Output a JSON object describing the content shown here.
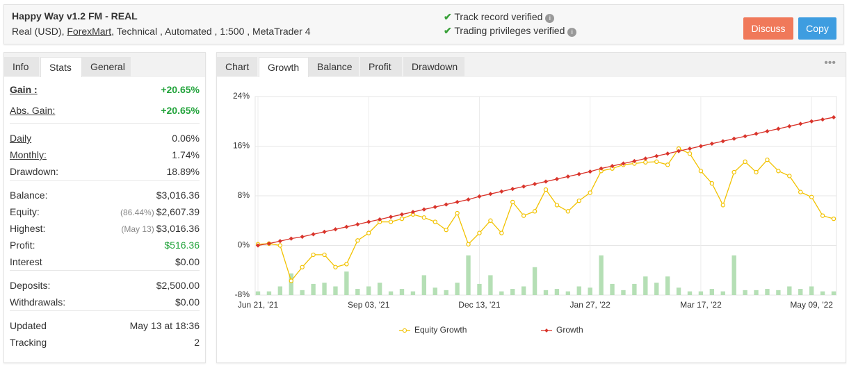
{
  "header": {
    "title": "Happy Way v1.2 FM - REAL",
    "subtitle": [
      "Real (USD), ",
      "ForexMart",
      ", Technical , Automated , 1:500 , MetaTrader 4"
    ],
    "verified": [
      "Track record verified",
      "Trading privileges verified"
    ],
    "buttons": [
      "Discuss",
      "Copy"
    ]
  },
  "left_tabs": [
    "Info",
    "Stats",
    "General"
  ],
  "stats": [
    [
      {
        "label": "Gain :",
        "value": "+20.65%"
      },
      {
        "label": "Abs. Gain:",
        "value": "+20.65%"
      }
    ],
    [
      {
        "label": "Daily",
        "value": "0.06%"
      },
      {
        "label": "Monthly:",
        "value": "1.74%"
      },
      {
        "label": "Drawdown:",
        "value": "18.89%"
      }
    ],
    [
      {
        "label": "Balance:",
        "value": "$3,016.36"
      },
      {
        "label": "Equity:",
        "note": "(86.44%)",
        "value": "$2,607.39"
      },
      {
        "label": "Highest:",
        "note": "(May 13)",
        "value": "$3,016.36"
      },
      {
        "label": "Profit:",
        "value": "$516.36"
      },
      {
        "label": "Interest",
        "value": "$0.00"
      }
    ],
    [
      {
        "label": "Deposits:",
        "value": "$2,500.00"
      },
      {
        "label": "Withdrawals:",
        "value": "$0.00"
      }
    ],
    [
      {
        "label": "Updated",
        "value": "May 13 at 18:36"
      },
      {
        "label": "Tracking",
        "value": "2"
      }
    ]
  ],
  "chart_tabs": [
    "Chart",
    "Growth",
    "Balance",
    "Profit",
    "Drawdown"
  ],
  "chart_data": {
    "type": "line",
    "categories": [
      "Jun 21, '21",
      null,
      null,
      null,
      null,
      null,
      null,
      null,
      null,
      null,
      "Sep 03, '21",
      null,
      null,
      null,
      null,
      null,
      null,
      null,
      null,
      null,
      "Dec 13, '21",
      null,
      null,
      null,
      null,
      null,
      null,
      null,
      null,
      null,
      "Jan 27, '22",
      null,
      null,
      null,
      null,
      null,
      null,
      null,
      null,
      null,
      "Mar 17, '22",
      null,
      null,
      null,
      null,
      null,
      null,
      null,
      null,
      null,
      "May 09, '22",
      null,
      null
    ],
    "series": [
      {
        "name": "Equity Growth",
        "color": "#f2c200",
        "values": [
          0.2,
          0.3,
          0,
          -5.7,
          -3.5,
          -1.5,
          -1.5,
          -3.5,
          -3.0,
          0.8,
          2.0,
          3.8,
          3.8,
          4.3,
          5.0,
          4.5,
          3.8,
          2.5,
          5.2,
          0.2,
          2.0,
          4.0,
          2.0,
          7.0,
          4.8,
          5.5,
          9.0,
          6.5,
          5.5,
          7.2,
          8.5,
          12.0,
          12.4,
          13.0,
          13.2,
          13.4,
          13.5,
          13.0,
          15.6,
          14.8,
          12.0,
          10.0,
          6.5,
          11.8,
          13.5,
          11.8,
          13.8,
          12.0,
          11.2,
          8.6,
          7.8,
          4.8,
          4.3
        ]
      },
      {
        "name": "Growth",
        "color": "#d9342b",
        "values": [
          0,
          0.3,
          0.7,
          1.1,
          1.4,
          1.8,
          2.2,
          2.6,
          3.0,
          3.4,
          3.8,
          4.2,
          4.6,
          5.0,
          5.4,
          5.8,
          6.2,
          6.6,
          7.0,
          7.4,
          7.9,
          8.3,
          8.7,
          9.1,
          9.5,
          9.9,
          10.3,
          10.7,
          11.1,
          11.5,
          11.9,
          12.4,
          12.8,
          13.2,
          13.6,
          14.0,
          14.4,
          14.8,
          15.2,
          15.6,
          16.0,
          16.4,
          16.8,
          17.2,
          17.6,
          18.0,
          18.4,
          18.8,
          19.2,
          19.6,
          20.0,
          20.3,
          20.65
        ]
      },
      {
        "color": "#b5dfb5",
        "bars": true,
        "values": [
          -7.4,
          -7.4,
          -6.6,
          -4.5,
          -7.2,
          -6.2,
          -6.0,
          -6.6,
          -4.2,
          -7.0,
          -6.6,
          -6.0,
          -7.4,
          -7.0,
          -7.4,
          -4.8,
          -6.8,
          -7.2,
          -6.0,
          -1.6,
          -6.2,
          -4.8,
          -7.4,
          -7.0,
          -6.6,
          -3.5,
          -7.2,
          -7.0,
          -7.4,
          -6.6,
          -6.8,
          -1.6,
          -6.2,
          -7.2,
          -6.2,
          -5.0,
          -6.0,
          -5.0,
          -6.8,
          -7.4,
          -7.4,
          -7.0,
          -7.4,
          -1.6,
          -7.2,
          -7.2,
          -7.0,
          -7.2,
          -6.6,
          -7.0,
          -6.6,
          -7.4,
          -7.4
        ]
      }
    ],
    "ylim": [
      -8,
      24
    ],
    "yticks": [
      {
        "value": -8,
        "label": "-8%"
      },
      {
        "value": 0,
        "label": "0%"
      },
      {
        "value": 8,
        "label": "8%"
      },
      {
        "value": 16,
        "label": "16%"
      },
      {
        "value": 24,
        "label": "24%"
      }
    ],
    "grid": true,
    "legend": "bottom"
  }
}
